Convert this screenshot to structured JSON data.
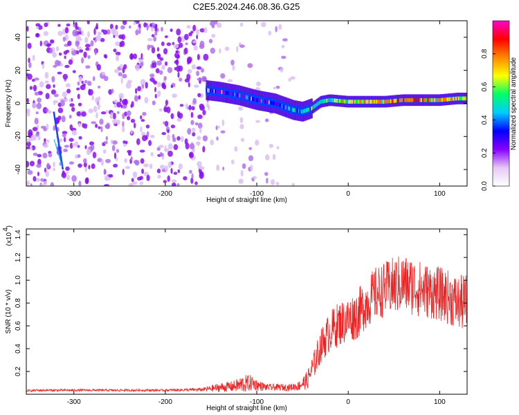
{
  "figure": {
    "title": "C2E5.2024.246.08.36.G25"
  },
  "chart_data": [
    {
      "type": "heatmap",
      "title": "C2E5.2024.246.08.36.G25",
      "xlabel": "Height of straight line (km)",
      "ylabel": "Frequency (Hz)",
      "xlim": [
        -352,
        130
      ],
      "ylim": [
        -50,
        50
      ],
      "xticks": [
        -300,
        -200,
        -100,
        0,
        100
      ],
      "xtick_labels": [
        "-300",
        "-200",
        "-100",
        "0",
        "100"
      ],
      "yticks": [
        -40,
        -20,
        0,
        20,
        40
      ],
      "ytick_labels": [
        "-40",
        "-20",
        "0",
        "20",
        "40"
      ],
      "colorbar": {
        "label": "Normalized spectral amplitude",
        "range": [
          0,
          1.0
        ],
        "ticks": [
          0.0,
          0.2,
          0.4,
          0.6,
          0.8
        ],
        "tick_labels": [
          "0.0",
          "0.2",
          "0.4",
          "0.6",
          "0.8"
        ],
        "colors": [
          "#ffffff",
          "#e6c8f5",
          "#8800ff",
          "#0000ff",
          "#00ccff",
          "#00ff66",
          "#ffff00",
          "#ff8800",
          "#ff0000",
          "#ff00cc"
        ]
      },
      "signal_track": {
        "x": [
          -155,
          -140,
          -120,
          -100,
          -80,
          -60,
          -50,
          -40,
          -30,
          -20,
          0,
          20,
          40,
          60,
          80,
          100,
          120,
          130
        ],
        "freq": [
          8,
          7,
          5,
          2,
          0,
          -4,
          -5,
          -3,
          1,
          2,
          1,
          1,
          1,
          2,
          2,
          2,
          3,
          3
        ],
        "amplitude": [
          0.25,
          0.3,
          0.35,
          0.3,
          0.35,
          0.45,
          0.5,
          0.55,
          0.55,
          0.6,
          0.7,
          0.75,
          0.8,
          0.85,
          0.8,
          0.75,
          0.7,
          0.6
        ]
      },
      "streak": {
        "x": [
          -322,
          -312
        ],
        "freq": [
          -5,
          -40
        ]
      }
    },
    {
      "type": "line",
      "xlabel": "Height of straight line (km)",
      "ylabel": "SNR (10 * v/v)",
      "multiplier_label": "(x10",
      "multiplier_exp": "4",
      "xlim": [
        -352,
        130
      ],
      "ylim": [
        0,
        1.45
      ],
      "xticks": [
        -300,
        -200,
        -100,
        0,
        100
      ],
      "xtick_labels": [
        "-300",
        "-200",
        "-100",
        "0",
        "100"
      ],
      "yticks": [
        0.2,
        0.4,
        0.6,
        0.8,
        1.0,
        1.2,
        1.4
      ],
      "ytick_labels": [
        "0.2",
        "0.4",
        "0.6",
        "0.8",
        "1.0",
        "1.2",
        "1.4"
      ],
      "series": [
        {
          "color": "#ee2222",
          "envelope": {
            "x": [
              -352,
              -340,
              -300,
              -200,
              -160,
              -150,
              -140,
              -125,
              -115,
              -105,
              -100,
              -90,
              -80,
              -65,
              -55,
              -45,
              -38,
              -30,
              -20,
              -10,
              0,
              10,
              20,
              30,
              40,
              50,
              60,
              70,
              80,
              90,
              100,
              110,
              120,
              130
            ],
            "mean": [
              0.03,
              0.035,
              0.035,
              0.035,
              0.04,
              0.05,
              0.06,
              0.07,
              0.09,
              0.1,
              0.08,
              0.06,
              0.06,
              0.06,
              0.07,
              0.12,
              0.25,
              0.42,
              0.55,
              0.62,
              0.65,
              0.7,
              0.8,
              0.88,
              0.92,
              0.95,
              0.97,
              0.95,
              0.92,
              0.9,
              0.88,
              0.85,
              0.8,
              0.8
            ],
            "spread": [
              0.01,
              0.01,
              0.01,
              0.01,
              0.015,
              0.03,
              0.04,
              0.05,
              0.08,
              0.07,
              0.05,
              0.03,
              0.03,
              0.03,
              0.04,
              0.08,
              0.12,
              0.15,
              0.18,
              0.2,
              0.2,
              0.22,
              0.22,
              0.24,
              0.24,
              0.26,
              0.26,
              0.26,
              0.25,
              0.24,
              0.24,
              0.24,
              0.24,
              0.26
            ]
          }
        }
      ]
    }
  ]
}
